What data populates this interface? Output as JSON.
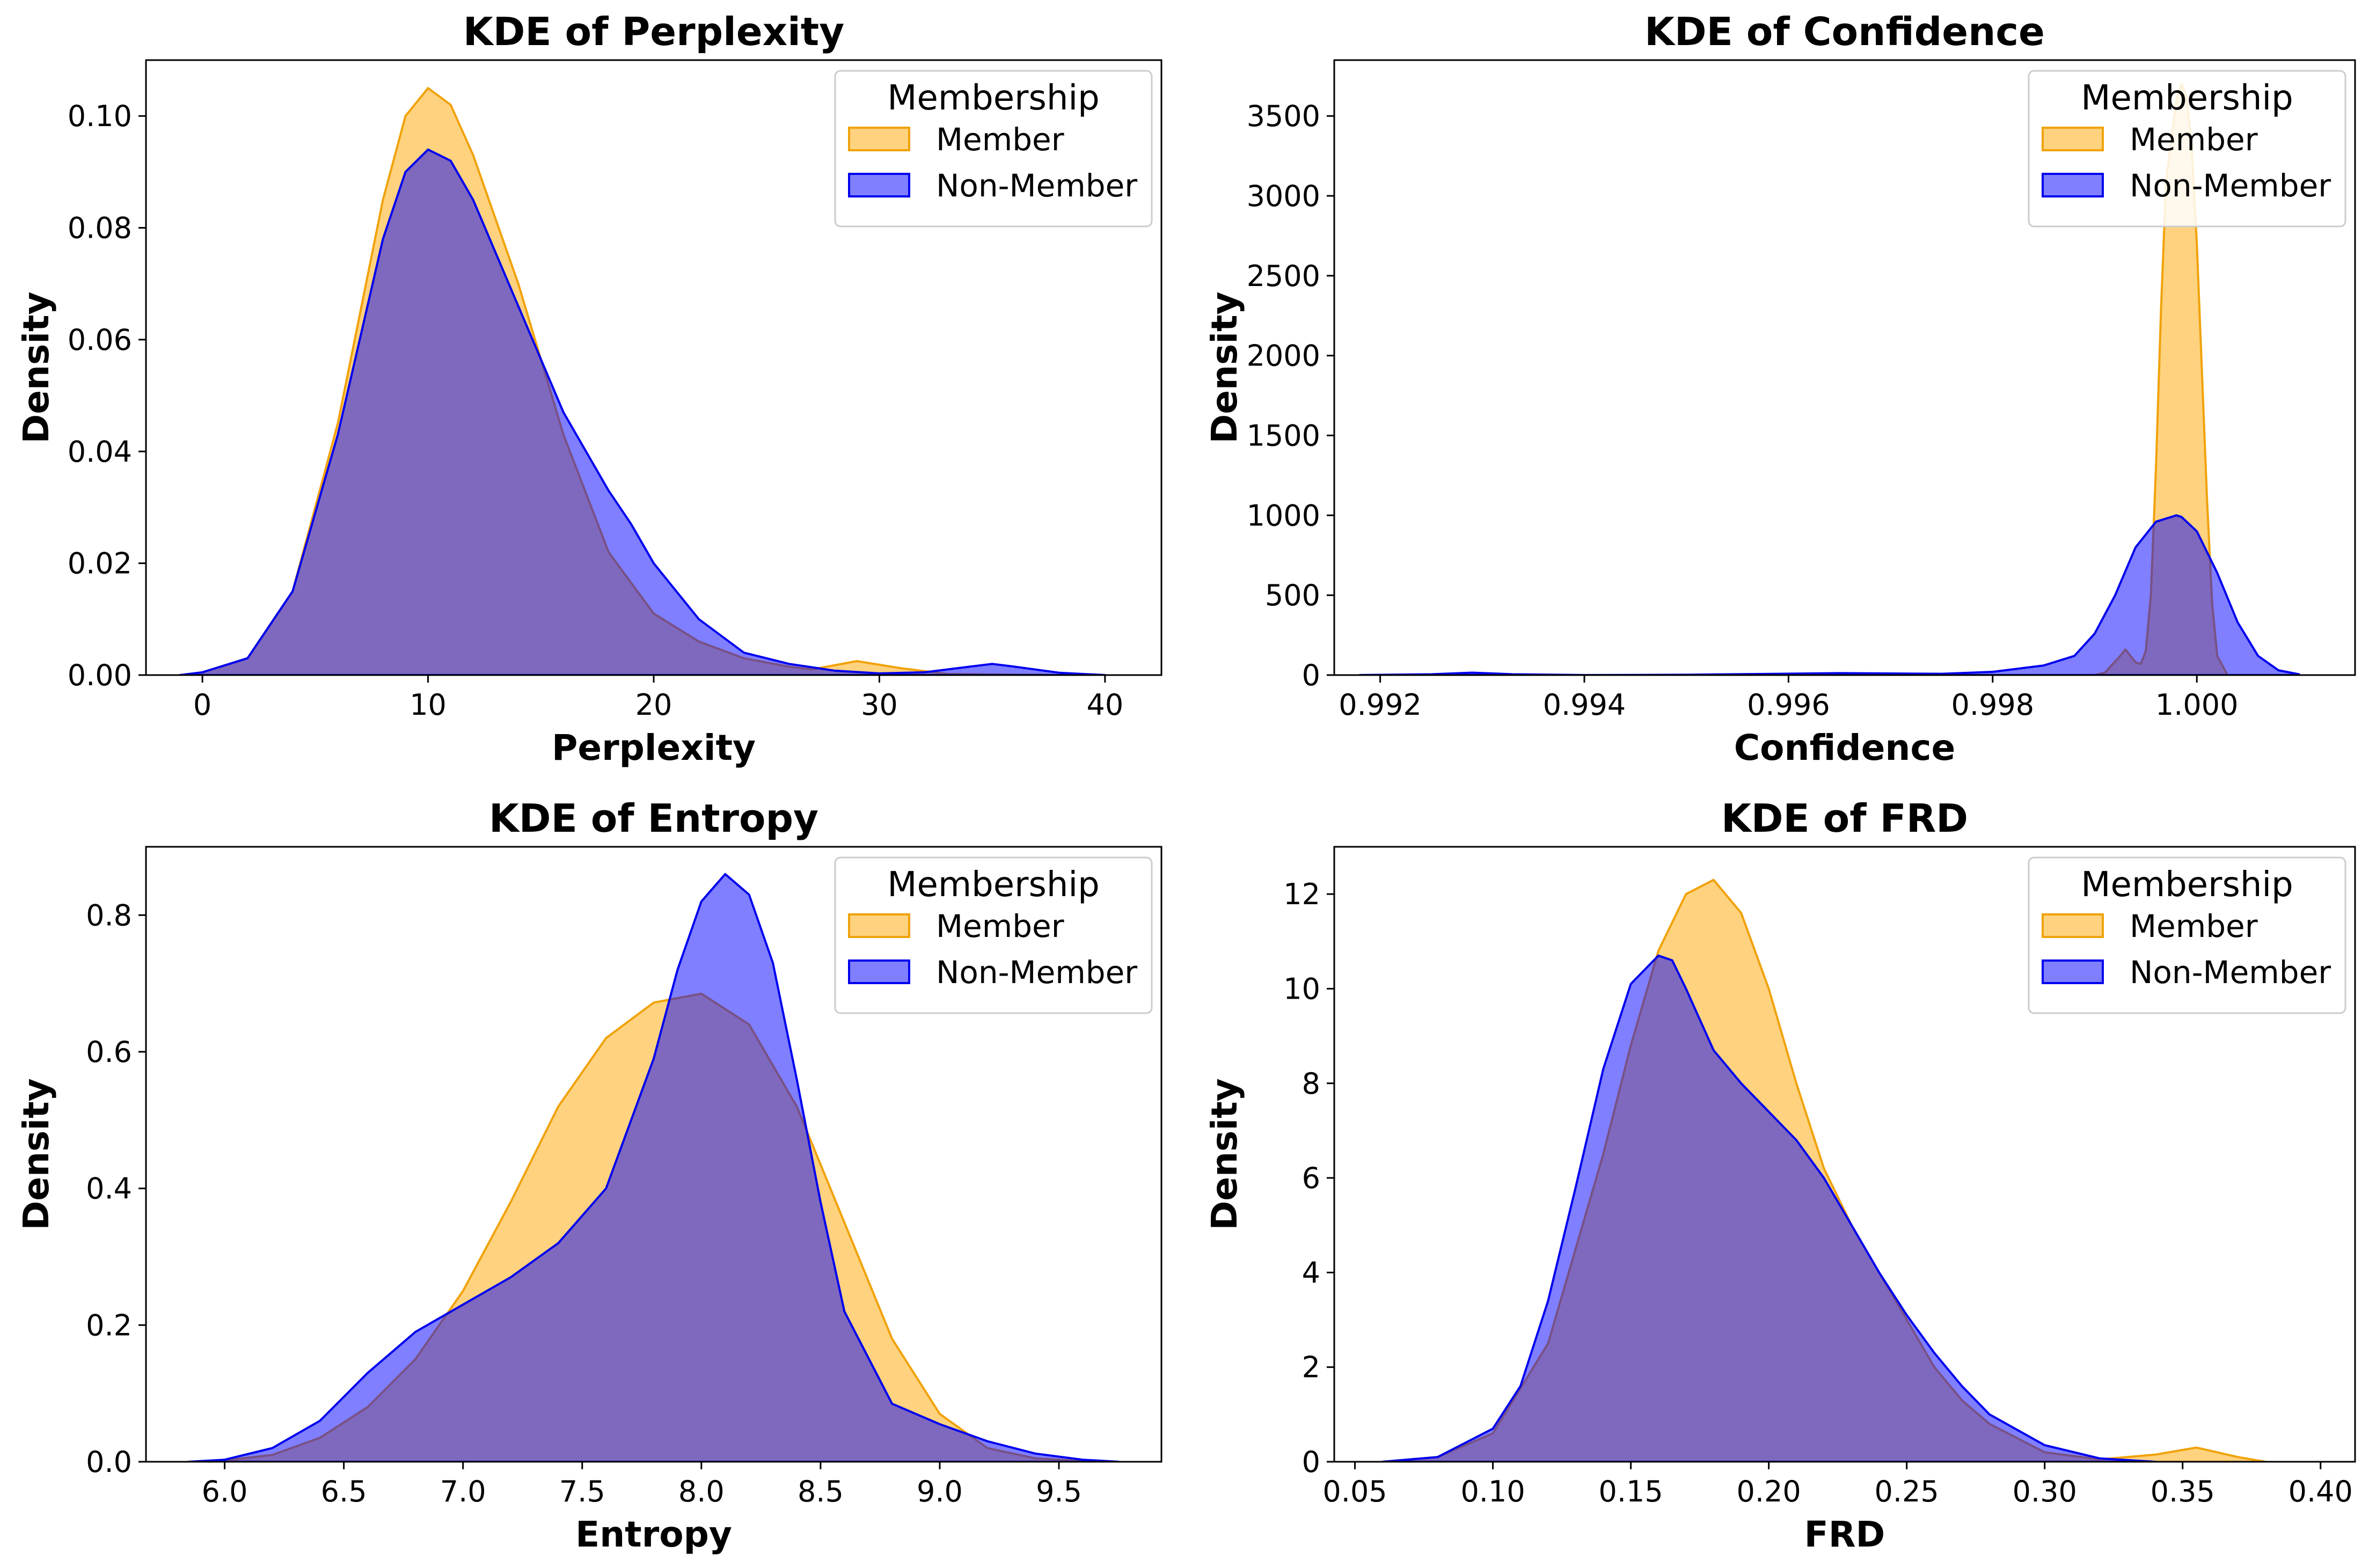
{
  "colors": {
    "member": "#ffa500",
    "non_member": "#0000ff",
    "member_stroke": "#f0a20a",
    "non_member_stroke": "#0000ee"
  },
  "chart_data": [
    {
      "type": "area",
      "title": "KDE of Perplexity",
      "xlabel": "Perplexity",
      "ylabel": "Density",
      "xlim": [
        -2.5,
        42.5
      ],
      "ylim": [
        0,
        0.11
      ],
      "xticks": [
        0,
        10,
        20,
        30,
        40
      ],
      "xtick_labels": [
        "0",
        "10",
        "20",
        "30",
        "40"
      ],
      "yticks": [
        0,
        0.02,
        0.04,
        0.06,
        0.08,
        0.1
      ],
      "ytick_labels": [
        "0.00",
        "0.02",
        "0.04",
        "0.06",
        "0.08",
        "0.10"
      ],
      "legend": {
        "title": "Membership",
        "position": "upper right",
        "entries": [
          "Member",
          "Non-Member"
        ]
      },
      "series": [
        {
          "name": "Member",
          "x": [
            -1,
            0,
            2,
            4,
            6,
            8,
            9,
            10,
            11,
            12,
            14,
            16,
            18,
            20,
            22,
            24,
            26,
            27,
            29,
            31,
            33,
            38
          ],
          "y": [
            0,
            0.0005,
            0.003,
            0.015,
            0.045,
            0.085,
            0.1,
            0.105,
            0.102,
            0.093,
            0.07,
            0.043,
            0.022,
            0.011,
            0.006,
            0.003,
            0.0015,
            0.001,
            0.0025,
            0.0012,
            0.0002,
            0
          ]
        },
        {
          "name": "Non-Member",
          "x": [
            -1,
            0,
            2,
            4,
            6,
            8,
            9,
            10,
            11,
            12,
            14,
            16,
            18,
            19,
            20,
            22,
            24,
            26,
            28,
            30,
            32,
            34,
            35,
            36,
            38,
            40
          ],
          "y": [
            0,
            0.0005,
            0.003,
            0.015,
            0.043,
            0.078,
            0.09,
            0.094,
            0.092,
            0.085,
            0.066,
            0.047,
            0.033,
            0.027,
            0.02,
            0.01,
            0.004,
            0.002,
            0.0008,
            0.0003,
            0.0005,
            0.0015,
            0.002,
            0.0015,
            0.0004,
            0
          ]
        }
      ]
    },
    {
      "type": "area",
      "title": "KDE of Confidence",
      "xlabel": "Confidence",
      "ylabel": "Density",
      "xlim": [
        0.99155,
        1.00155
      ],
      "ylim": [
        0,
        3850
      ],
      "xticks": [
        0.992,
        0.994,
        0.996,
        0.998,
        1.0
      ],
      "xtick_labels": [
        "0.992",
        "0.994",
        "0.996",
        "0.998",
        "1.000"
      ],
      "yticks": [
        0,
        500,
        1000,
        1500,
        2000,
        2500,
        3000,
        3500
      ],
      "ytick_labels": [
        "0",
        "500",
        "1000",
        "1500",
        "2000",
        "2500",
        "3000",
        "3500"
      ],
      "legend": {
        "title": "Membership",
        "position": "upper right",
        "entries": [
          "Member",
          "Non-Member"
        ]
      },
      "series": [
        {
          "name": "Member",
          "x": [
            0.999,
            0.9991,
            0.99925,
            0.9993,
            0.99935,
            0.9994,
            0.99945,
            0.9995,
            0.99955,
            0.9996,
            0.99965,
            0.9997,
            0.9998,
            0.99985,
            0.9999,
            0.99995,
            1.0,
            1.00005,
            1.0001,
            1.00015,
            1.0002,
            1.0003
          ],
          "y": [
            0,
            15,
            120,
            160,
            120,
            80,
            70,
            150,
            500,
            1300,
            2300,
            3100,
            3600,
            3700,
            3620,
            3300,
            2700,
            1900,
            1100,
            450,
            120,
            0
          ]
        },
        {
          "name": "Non-Member",
          "x": [
            0.9918,
            0.9925,
            0.9929,
            0.9933,
            0.994,
            0.995,
            0.9965,
            0.9975,
            0.998,
            0.9985,
            0.9988,
            0.999,
            0.9992,
            0.9994,
            0.9996,
            0.9998,
            0.99985,
            1.0,
            1.0002,
            1.0004,
            1.0006,
            1.0008,
            1.001
          ],
          "y": [
            0,
            5,
            15,
            5,
            0,
            2,
            12,
            8,
            20,
            60,
            120,
            260,
            500,
            800,
            960,
            1000,
            990,
            900,
            640,
            330,
            120,
            30,
            5
          ]
        }
      ]
    },
    {
      "type": "area",
      "title": "KDE of Entropy",
      "xlabel": "Entropy",
      "ylabel": "Density",
      "xlim": [
        5.67,
        9.93
      ],
      "ylim": [
        0,
        0.9
      ],
      "xticks": [
        6.0,
        6.5,
        7.0,
        7.5,
        8.0,
        8.5,
        9.0,
        9.5
      ],
      "xtick_labels": [
        "6.0",
        "6.5",
        "7.0",
        "7.5",
        "8.0",
        "8.5",
        "9.0",
        "9.5"
      ],
      "yticks": [
        0,
        0.2,
        0.4,
        0.6,
        0.8
      ],
      "ytick_labels": [
        "0.0",
        "0.2",
        "0.4",
        "0.6",
        "0.8"
      ],
      "legend": {
        "title": "Membership",
        "position": "upper right",
        "entries": [
          "Member",
          "Non-Member"
        ]
      },
      "series": [
        {
          "name": "Member",
          "x": [
            6.0,
            6.2,
            6.4,
            6.6,
            6.8,
            7.0,
            7.2,
            7.4,
            7.6,
            7.8,
            8.0,
            8.2,
            8.4,
            8.6,
            8.8,
            9.0,
            9.2,
            9.4,
            9.6
          ],
          "y": [
            0.002,
            0.01,
            0.035,
            0.08,
            0.15,
            0.25,
            0.38,
            0.52,
            0.62,
            0.672,
            0.685,
            0.64,
            0.52,
            0.35,
            0.18,
            0.07,
            0.02,
            0.005,
            0.001
          ]
        },
        {
          "name": "Non-Member",
          "x": [
            5.85,
            6.0,
            6.2,
            6.4,
            6.6,
            6.8,
            7.0,
            7.2,
            7.4,
            7.6,
            7.8,
            7.9,
            8.0,
            8.1,
            8.2,
            8.3,
            8.4,
            8.5,
            8.6,
            8.8,
            9.0,
            9.2,
            9.4,
            9.6,
            9.75
          ],
          "y": [
            0,
            0.003,
            0.02,
            0.06,
            0.13,
            0.19,
            0.23,
            0.27,
            0.32,
            0.4,
            0.59,
            0.72,
            0.82,
            0.86,
            0.83,
            0.73,
            0.56,
            0.38,
            0.22,
            0.085,
            0.055,
            0.03,
            0.012,
            0.003,
            0
          ]
        }
      ]
    },
    {
      "type": "area",
      "title": "KDE of FRD",
      "xlabel": "FRD",
      "ylabel": "Density",
      "xlim": [
        0.0425,
        0.4125
      ],
      "ylim": [
        0,
        13.0
      ],
      "xticks": [
        0.05,
        0.1,
        0.15,
        0.2,
        0.25,
        0.3,
        0.35,
        0.4
      ],
      "xtick_labels": [
        "0.05",
        "0.10",
        "0.15",
        "0.20",
        "0.25",
        "0.30",
        "0.35",
        "0.40"
      ],
      "yticks": [
        0,
        2,
        4,
        6,
        8,
        10,
        12
      ],
      "ytick_labels": [
        "0",
        "2",
        "4",
        "6",
        "8",
        "10",
        "12"
      ],
      "legend": {
        "title": "Membership",
        "position": "upper right",
        "entries": [
          "Member",
          "Non-Member"
        ]
      },
      "series": [
        {
          "name": "Member",
          "x": [
            0.06,
            0.08,
            0.1,
            0.12,
            0.14,
            0.15,
            0.16,
            0.17,
            0.18,
            0.19,
            0.2,
            0.21,
            0.22,
            0.23,
            0.24,
            0.25,
            0.26,
            0.27,
            0.28,
            0.3,
            0.32,
            0.34,
            0.355,
            0.37,
            0.38
          ],
          "y": [
            0,
            0.1,
            0.6,
            2.5,
            6.5,
            8.8,
            10.8,
            12.0,
            12.3,
            11.6,
            10.0,
            8.0,
            6.2,
            5.0,
            4.0,
            3.0,
            2.0,
            1.3,
            0.8,
            0.2,
            0.05,
            0.15,
            0.3,
            0.1,
            0
          ]
        },
        {
          "name": "Non-Member",
          "x": [
            0.06,
            0.08,
            0.1,
            0.11,
            0.12,
            0.13,
            0.14,
            0.15,
            0.16,
            0.165,
            0.17,
            0.18,
            0.19,
            0.2,
            0.21,
            0.22,
            0.23,
            0.24,
            0.25,
            0.26,
            0.27,
            0.28,
            0.3,
            0.32,
            0.34
          ],
          "y": [
            0,
            0.1,
            0.7,
            1.6,
            3.4,
            5.8,
            8.3,
            10.1,
            10.7,
            10.6,
            10.0,
            8.7,
            8.0,
            7.4,
            6.8,
            6.0,
            5.0,
            4.0,
            3.1,
            2.3,
            1.6,
            1.0,
            0.35,
            0.07,
            0
          ]
        }
      ]
    }
  ]
}
